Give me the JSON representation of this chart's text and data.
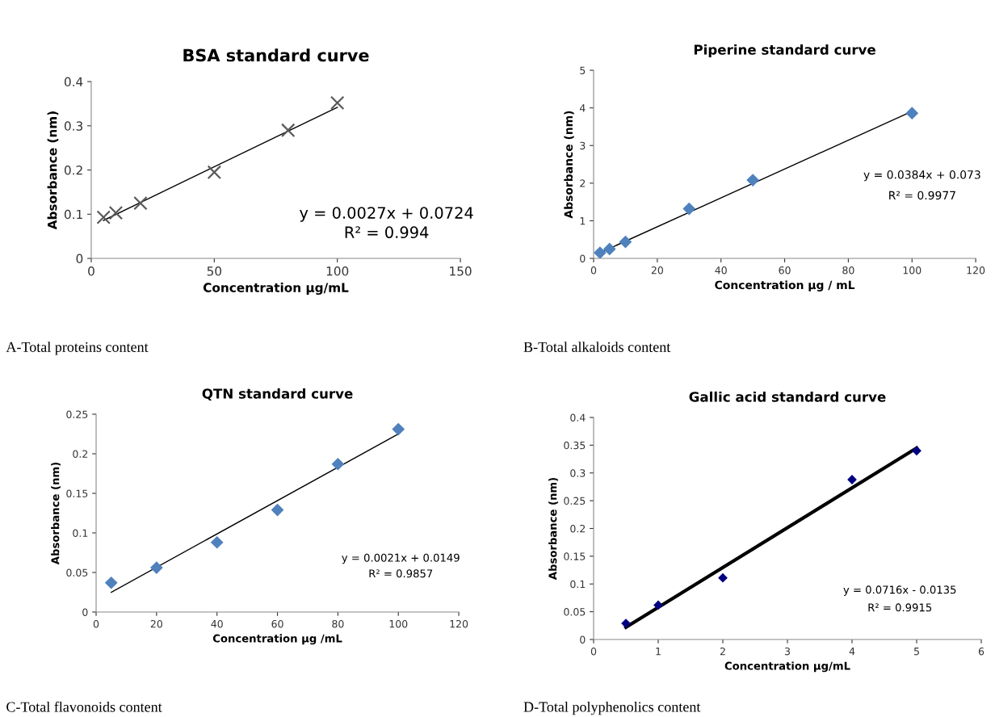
{
  "chart_data": [
    {
      "type": "scatter",
      "title": "BSA standard curve",
      "xlabel": "Concentration µg/mL",
      "ylabel": "Absorbance (nm)",
      "xlim": [
        0,
        150
      ],
      "xticks": [
        0,
        50,
        100,
        150
      ],
      "ylim": [
        0,
        0.4
      ],
      "yticks": [
        0,
        0.1,
        0.2,
        0.3,
        0.4
      ],
      "grid": false,
      "series": [
        {
          "color": "#595959",
          "marker": "cross",
          "x": [
            5,
            10,
            20,
            50,
            80,
            100
          ],
          "values": [
            0.093,
            0.103,
            0.125,
            0.195,
            0.29,
            0.352
          ]
        },
        {
          "type": "line",
          "color": "#000000",
          "marker": "none",
          "line_style": "solid",
          "x": [
            5,
            100
          ],
          "values": [
            0.086,
            0.342
          ]
        }
      ],
      "annotations": [
        "y = 0.0027x + 0.0724",
        "R² = 0.994",
        "A-Total proteins content"
      ]
    },
    {
      "type": "scatter",
      "title": "Piperine standard curve",
      "xlabel": "Concentration µg / mL",
      "ylabel": "Absorbance (nm)",
      "xlim": [
        0,
        120
      ],
      "xticks": [
        0,
        20,
        40,
        60,
        80,
        100,
        120
      ],
      "ylim": [
        0,
        5
      ],
      "yticks": [
        0,
        1,
        2,
        3,
        4,
        5
      ],
      "grid": false,
      "series": [
        {
          "color": "#4f81bd",
          "marker": "diamond",
          "x": [
            2,
            5,
            10,
            30,
            50,
            100
          ],
          "values": [
            0.15,
            0.25,
            0.44,
            1.32,
            2.08,
            3.86
          ]
        },
        {
          "type": "line",
          "color": "#000000",
          "marker": "none",
          "line_style": "solid",
          "x": [
            2,
            100
          ],
          "values": [
            0.15,
            3.91
          ]
        }
      ],
      "annotations": [
        "y = 0.0384x + 0.073",
        "R² = 0.9977",
        "B-Total alkaloids content"
      ]
    },
    {
      "type": "scatter",
      "title": "QTN standard curve",
      "xlabel": "Concentration µg /mL",
      "ylabel": "Absorbance (nm)",
      "xlim": [
        0,
        120
      ],
      "xticks": [
        0,
        20,
        40,
        60,
        80,
        100,
        120
      ],
      "ylim": [
        0,
        0.25
      ],
      "yticks": [
        0,
        0.05,
        0.1,
        0.15,
        0.2,
        0.25
      ],
      "grid": false,
      "series": [
        {
          "color": "#4f81bd",
          "marker": "diamond",
          "x": [
            5,
            20,
            40,
            60,
            80,
            100
          ],
          "values": [
            0.037,
            0.056,
            0.088,
            0.129,
            0.187,
            0.231
          ]
        },
        {
          "type": "line",
          "color": "#000000",
          "marker": "none",
          "line_style": "solid",
          "x": [
            5,
            100
          ],
          "values": [
            0.025,
            0.225
          ]
        }
      ],
      "annotations": [
        "y = 0.0021x + 0.0149",
        "R² = 0.9857",
        "C-Total flavonoids content"
      ]
    },
    {
      "type": "scatter",
      "title": "Gallic acid standard curve",
      "xlabel": "Concentration µg/mL",
      "ylabel": "Absorbance (nm)",
      "xlim": [
        0,
        6
      ],
      "xticks": [
        0,
        1,
        2,
        3,
        4,
        5,
        6
      ],
      "ylim": [
        0,
        0.4
      ],
      "yticks": [
        0,
        0.05,
        0.1,
        0.15,
        0.2,
        0.25,
        0.3,
        0.35,
        0.4
      ],
      "grid": false,
      "series": [
        {
          "color": "#000080",
          "marker": "diamond",
          "x": [
            0.5,
            1,
            2,
            4,
            5
          ],
          "values": [
            0.029,
            0.062,
            0.111,
            0.288,
            0.34
          ]
        },
        {
          "type": "line",
          "color": "#000000",
          "marker": "none",
          "line_style": "solid",
          "x": [
            0.5,
            5
          ],
          "values": [
            0.022,
            0.345
          ]
        }
      ],
      "annotations": [
        "y = 0.0716x - 0.0135",
        "R² = 0.9915",
        "D-Total polyphenolics content"
      ]
    }
  ]
}
